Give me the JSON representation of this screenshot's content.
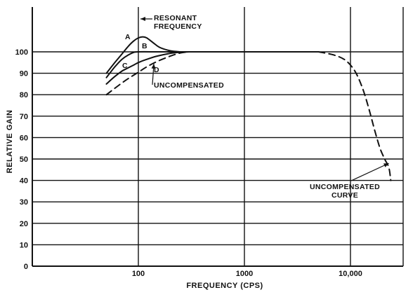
{
  "chart_data": {
    "type": "line",
    "title": "",
    "xlabel": "FREQUENCY (CPS)",
    "ylabel": "RELATIVE GAIN",
    "x_scale": "log",
    "xlim": [
      10,
      40000
    ],
    "ylim": [
      0,
      115
    ],
    "x_ticks": [
      {
        "value": 100,
        "label": "100"
      },
      {
        "value": 1000,
        "label": "1000"
      },
      {
        "value": 10000,
        "label": "10,000"
      }
    ],
    "y_ticks": [
      0,
      10,
      20,
      30,
      40,
      50,
      60,
      70,
      80,
      90,
      100
    ],
    "grid": true,
    "series": [
      {
        "name": "A",
        "style": "solid",
        "x": [
          50,
          60,
          70,
          80,
          90,
          100,
          110,
          120,
          140,
          160,
          200,
          250,
          300,
          1000,
          5000
        ],
        "y": [
          90,
          95,
          99,
          102.5,
          105,
          106.5,
          107,
          106.5,
          104,
          102,
          100.5,
          100,
          100,
          100,
          100
        ]
      },
      {
        "name": "B",
        "style": "solid",
        "x": [
          50,
          60,
          70,
          80,
          90,
          100,
          150,
          200,
          300,
          1000,
          5000
        ],
        "y": [
          88,
          93,
          96.5,
          98.5,
          99.7,
          100,
          100,
          100,
          100,
          100,
          100
        ]
      },
      {
        "name": "C",
        "style": "solid",
        "x": [
          50,
          60,
          70,
          80,
          90,
          100,
          120,
          150,
          200,
          250,
          300
        ],
        "y": [
          85,
          88.5,
          91,
          92.5,
          93.8,
          95,
          96.5,
          98,
          99.3,
          99.8,
          100
        ]
      },
      {
        "name": "D",
        "style": "dashed",
        "x": [
          50,
          60,
          70,
          80,
          100,
          120,
          150,
          200,
          250,
          300
        ],
        "y": [
          80,
          83,
          85.5,
          87.5,
          90.5,
          93,
          95.5,
          98,
          99.5,
          100
        ]
      },
      {
        "name": "UNCOMPENSATED CURVE",
        "style": "dashed",
        "x": [
          5000,
          7000,
          9000,
          11000,
          13000,
          15000,
          17000,
          19000,
          21000,
          23000,
          24000
        ],
        "y": [
          100,
          98.5,
          96,
          91,
          83,
          73,
          63,
          55,
          50,
          46,
          40
        ]
      }
    ],
    "annotations": [
      {
        "text_lines": [
          "RESONANT",
          "FREQUENCY"
        ],
        "target_x": 110
      },
      {
        "text_lines": [
          "A"
        ],
        "series": "A"
      },
      {
        "text_lines": [
          "B"
        ],
        "series": "B"
      },
      {
        "text_lines": [
          "C"
        ],
        "series": "C"
      },
      {
        "text_lines": [
          "D"
        ],
        "series": "D"
      },
      {
        "text_lines": [
          "UNCOMPENSATED"
        ],
        "series": "D"
      },
      {
        "text_lines": [
          "UNCOMPENSATED",
          "CURVE"
        ],
        "series": "UNCOMPENSATED CURVE"
      }
    ]
  }
}
